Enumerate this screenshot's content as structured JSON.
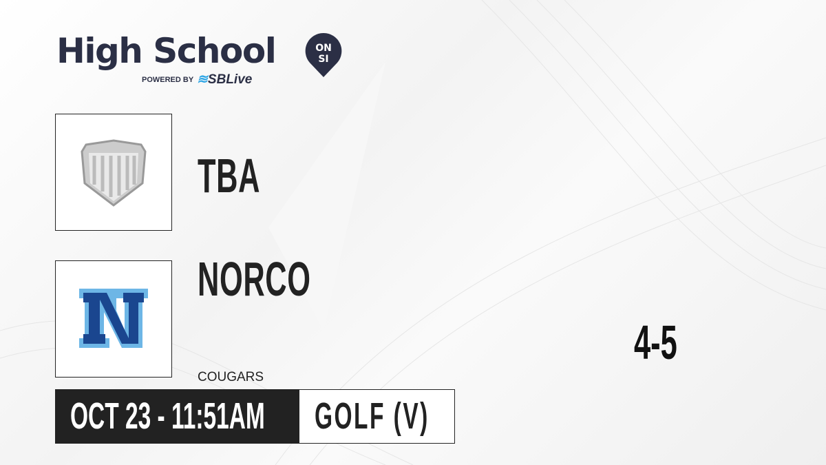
{
  "brand": {
    "title": "High School",
    "badge_top": "ON",
    "badge_bottom": "SI",
    "powered_by": "POWERED BY",
    "partner": "SBLive",
    "color": "#2b2f45",
    "partner_accent": "#2ea6e6"
  },
  "teams": [
    {
      "name": "TBA",
      "logo": "shield-placeholder-icon"
    },
    {
      "name": "NORCO",
      "mascot": "COUGARS",
      "logo": "norco-n-logo",
      "colors": {
        "primary": "#1a468f",
        "outline": "#6db6e6"
      }
    }
  ],
  "score": "4-5",
  "event": {
    "datetime": "OCT 23 - 11:51AM",
    "sport": "GOLF (V)"
  }
}
